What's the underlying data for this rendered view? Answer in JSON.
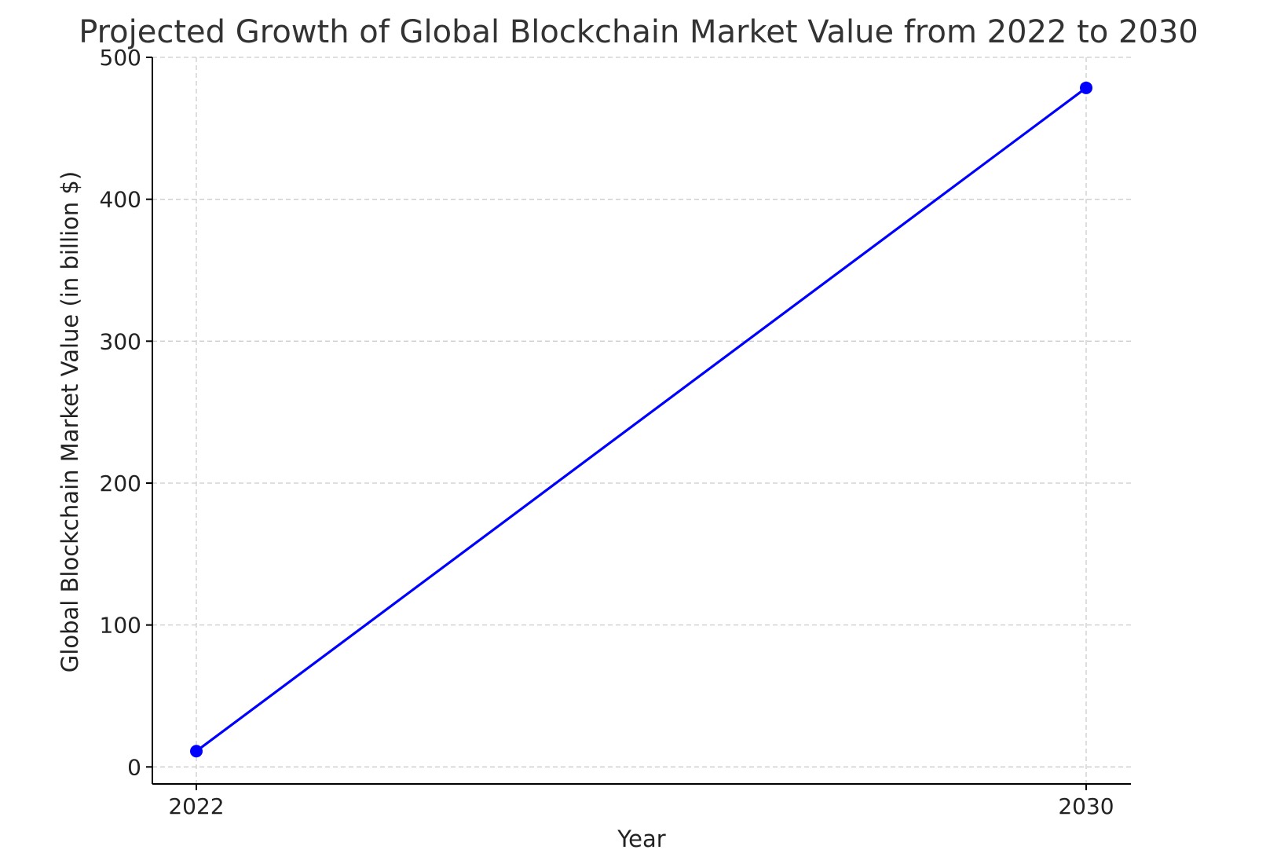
{
  "chart_data": {
    "type": "line",
    "title": "Projected Growth of Global Blockchain Market Value from 2022 to 2030",
    "xlabel": "Year",
    "ylabel": "Global Blockchain Market Value (in billion $)",
    "x": [
      "2022",
      "2030"
    ],
    "series": [
      {
        "values": [
          11.1,
          478.5
        ],
        "color": "#0000ff"
      }
    ],
    "xticks": [
      "2022",
      "2030"
    ],
    "yticks": [
      "0",
      "100",
      "200",
      "300",
      "400",
      "500"
    ],
    "ylim": [
      -12,
      500
    ],
    "grid": true,
    "legend": "none"
  }
}
